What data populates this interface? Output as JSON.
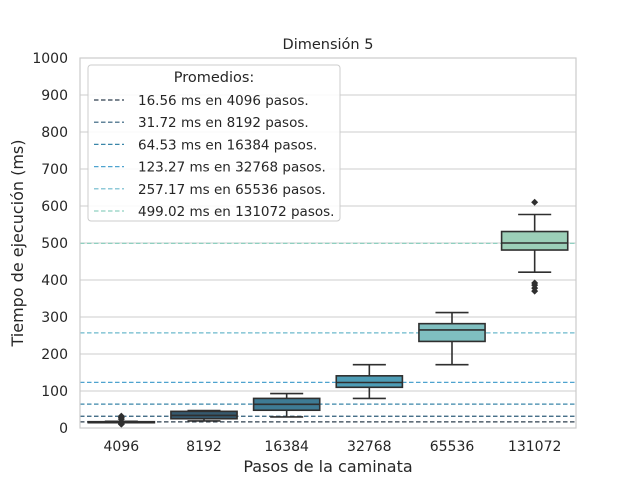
{
  "chart_data": {
    "type": "box",
    "title": "Dimensión 5",
    "xlabel": "Pasos de la caminata",
    "ylabel": "Tiempo de ejecución (ms)",
    "ylim": [
      0,
      1000
    ],
    "yticks": [
      0,
      100,
      200,
      300,
      400,
      500,
      600,
      700,
      800,
      900,
      1000
    ],
    "grid": true,
    "legend_position": "top-left",
    "legend_title": "Promedios:",
    "categories": [
      "4096",
      "8192",
      "16384",
      "32768",
      "65536",
      "131072"
    ],
    "boxes": [
      {
        "category": "4096",
        "whisker_low": 15,
        "q1": 15,
        "median": 16,
        "q3": 17,
        "whisker_high": 18,
        "outliers": [
          10,
          12,
          24,
          28,
          32
        ],
        "color": "#2e4a5c"
      },
      {
        "category": "8192",
        "whisker_low": 19,
        "q1": 25,
        "median": 34,
        "q3": 45,
        "whisker_high": 47,
        "outliers": [],
        "color": "#35596e"
      },
      {
        "category": "16384",
        "whisker_low": 30,
        "q1": 48,
        "median": 64,
        "q3": 80,
        "whisker_high": 93,
        "outliers": [],
        "color": "#3e7b94"
      },
      {
        "category": "32768",
        "whisker_low": 80,
        "q1": 110,
        "median": 123,
        "q3": 141,
        "whisker_high": 171,
        "outliers": [],
        "color": "#4e9db6"
      },
      {
        "category": "65536",
        "whisker_low": 171,
        "q1": 234,
        "median": 265,
        "q3": 282,
        "whisker_high": 312,
        "outliers": [],
        "color": "#7fbfc0"
      },
      {
        "category": "131072",
        "whisker_low": 421,
        "q1": 481,
        "median": 500,
        "q3": 531,
        "whisker_high": 577,
        "outliers": [
          370,
          378,
          386,
          392,
          610
        ],
        "color": "#9ccfb8"
      }
    ],
    "series": [
      {
        "name": "16.56 ms en 4096 pasos.",
        "value": 16.56,
        "color": "#2d3f4e"
      },
      {
        "name": "31.72 ms en 8192 pasos.",
        "value": 31.72,
        "color": "#2f5c7a"
      },
      {
        "name": "64.53 ms en 16384 pasos.",
        "value": 64.53,
        "color": "#3a86a8"
      },
      {
        "name": "123.27 ms en 32768 pasos.",
        "value": 123.27,
        "color": "#4ea3cf"
      },
      {
        "name": "257.17 ms en 65536 pasos.",
        "value": 257.17,
        "color": "#6bb8cc"
      },
      {
        "name": "499.02 ms en 131072 pasos.",
        "value": 499.02,
        "color": "#8fd0c0"
      }
    ]
  }
}
